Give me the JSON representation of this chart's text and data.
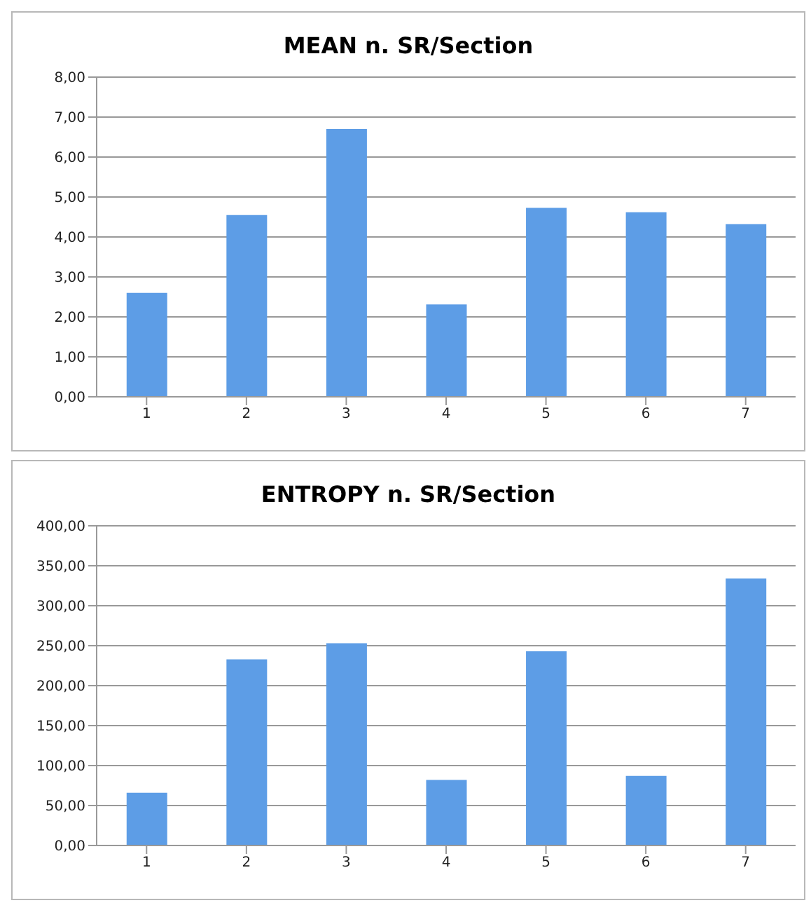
{
  "chart_data": [
    {
      "type": "bar",
      "title": "MEAN n. SR/Section",
      "categories": [
        "1",
        "2",
        "3",
        "4",
        "5",
        "6",
        "7"
      ],
      "values": [
        2.6,
        4.55,
        6.7,
        2.31,
        4.73,
        4.62,
        4.32
      ],
      "color": "#5d9de6",
      "ylim": [
        0,
        8
      ],
      "yticks": [
        {
          "value": 0,
          "label": "0,00"
        },
        {
          "value": 1,
          "label": "1,00"
        },
        {
          "value": 2,
          "label": "2,00"
        },
        {
          "value": 3,
          "label": "3,00"
        },
        {
          "value": 4,
          "label": "4,00"
        },
        {
          "value": 5,
          "label": "5,00"
        },
        {
          "value": 6,
          "label": "6,00"
        },
        {
          "value": 7,
          "label": "7,00"
        },
        {
          "value": 8,
          "label": "8,00"
        }
      ],
      "grid": "y"
    },
    {
      "type": "bar",
      "title": "ENTROPY n. SR/Section",
      "categories": [
        "1",
        "2",
        "3",
        "4",
        "5",
        "6",
        "7"
      ],
      "values": [
        66,
        233,
        253,
        82,
        243,
        87,
        334
      ],
      "color": "#5d9de6",
      "ylim": [
        0,
        400
      ],
      "yticks": [
        {
          "value": 0,
          "label": "0,00"
        },
        {
          "value": 50,
          "label": "50,00"
        },
        {
          "value": 100,
          "label": "100,00"
        },
        {
          "value": 150,
          "label": "150,00"
        },
        {
          "value": 200,
          "label": "200,00"
        },
        {
          "value": 250,
          "label": "250,00"
        },
        {
          "value": 300,
          "label": "300,00"
        },
        {
          "value": 350,
          "label": "350,00"
        },
        {
          "value": 400,
          "label": "400,00"
        }
      ],
      "grid": "y"
    }
  ]
}
